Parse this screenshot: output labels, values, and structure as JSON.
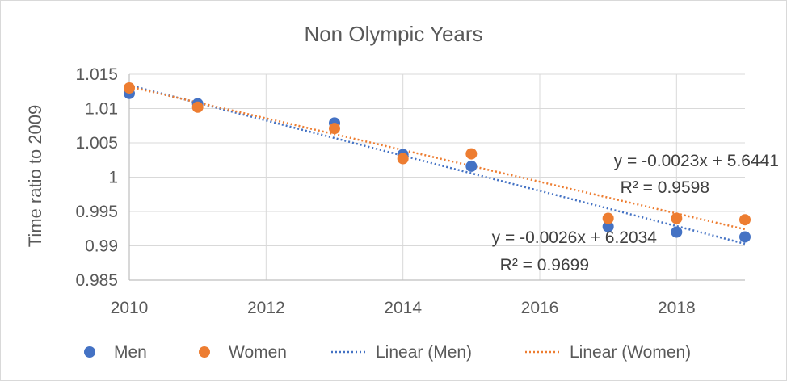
{
  "chart_data": {
    "type": "scatter",
    "title": "Non Olympic Years",
    "xlabel": "",
    "ylabel": "Time ratio to 2009",
    "xlim": [
      2010,
      2019
    ],
    "ylim": [
      0.985,
      1.015
    ],
    "x_ticks": [
      "2010",
      "2012",
      "2014",
      "2016",
      "2018"
    ],
    "y_ticks": [
      "0.985",
      "0.99",
      "0.995",
      "1",
      "1.005",
      "1.01",
      "1.015"
    ],
    "grid": true,
    "legend_position": "bottom",
    "series": [
      {
        "name": "Men",
        "color": "#4472C4",
        "x": [
          2010,
          2011,
          2013,
          2014,
          2015,
          2017,
          2018,
          2019
        ],
        "y": [
          1.0122,
          1.0107,
          1.0079,
          1.0033,
          1.0016,
          0.9928,
          0.992,
          0.9913
        ]
      },
      {
        "name": "Women",
        "color": "#ED7D31",
        "x": [
          2010,
          2011,
          2013,
          2014,
          2015,
          2017,
          2018,
          2019
        ],
        "y": [
          1.013,
          1.0102,
          1.0071,
          1.0027,
          1.0034,
          0.994,
          0.994,
          0.9938
        ]
      }
    ],
    "trendlines": [
      {
        "name": "Linear (Men)",
        "color": "#4472C4",
        "slope": -0.0026,
        "intercept": 6.2034,
        "y_at_2010": 1.0134,
        "y_at_2019": 0.9903,
        "equation": "y = -0.0026x + 6.2034",
        "r2": "R² = 0.9699"
      },
      {
        "name": "Linear (Women)",
        "color": "#ED7D31",
        "slope": -0.0023,
        "intercept": 5.6441,
        "y_at_2010": 1.0132,
        "y_at_2019": 0.9924,
        "equation": "y = -0.0023x + 5.6441",
        "r2": "R² = 0.9598"
      }
    ]
  },
  "legend": {
    "men": "Men",
    "women": "Women",
    "linear_men": "Linear (Men)",
    "linear_women": "Linear (Women)"
  }
}
